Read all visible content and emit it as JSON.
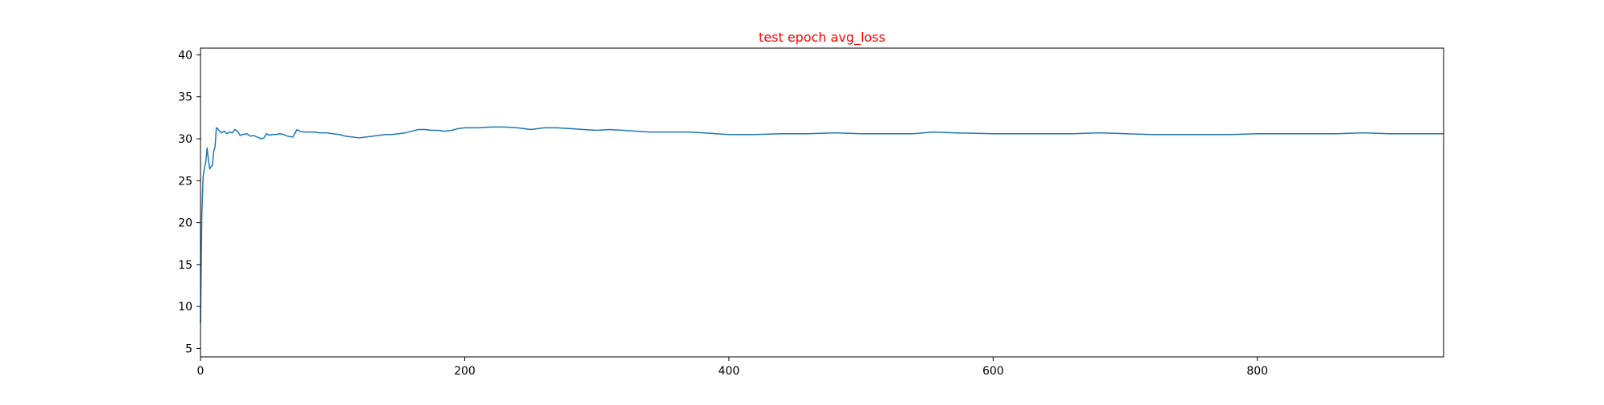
{
  "chart_data": {
    "type": "line",
    "title": "test epoch avg_loss",
    "title_color": "#ff0000",
    "xlabel": "",
    "ylabel": "",
    "xlim": [
      0,
      941
    ],
    "ylim": [
      4,
      40.8
    ],
    "xticks": [
      0,
      200,
      400,
      600,
      800
    ],
    "xtick_labels": [
      "0",
      "200",
      "400",
      "600",
      "800"
    ],
    "yticks": [
      5,
      10,
      15,
      20,
      25,
      30,
      35,
      40
    ],
    "ytick_labels": [
      "5",
      "10",
      "15",
      "20",
      "25",
      "30",
      "35",
      "40"
    ],
    "grid": false,
    "legend": "none",
    "series": [
      {
        "color": "#1f77b4",
        "x": [
          0,
          1,
          2,
          3,
          4,
          5,
          6,
          7,
          8,
          9,
          10,
          11,
          12,
          13,
          14,
          16,
          18,
          20,
          22,
          24,
          26,
          28,
          30,
          32,
          35,
          38,
          40,
          43,
          46,
          48,
          50,
          52,
          54,
          57,
          60,
          63,
          66,
          70,
          73,
          75,
          78,
          82,
          86,
          90,
          95,
          100,
          105,
          110,
          115,
          120,
          125,
          130,
          135,
          140,
          145,
          150,
          155,
          160,
          165,
          170,
          175,
          180,
          185,
          190,
          195,
          200,
          210,
          220,
          230,
          240,
          250,
          260,
          270,
          280,
          290,
          300,
          310,
          320,
          330,
          340,
          350,
          360,
          370,
          380,
          390,
          400,
          420,
          440,
          460,
          480,
          500,
          520,
          540,
          555,
          570,
          600,
          620,
          640,
          660,
          680,
          700,
          720,
          740,
          760,
          780,
          800,
          820,
          840,
          860,
          880,
          900,
          920,
          941
        ],
        "y": [
          8,
          21,
          25.5,
          26.5,
          27.2,
          28.9,
          27.5,
          26.4,
          26.7,
          26.8,
          28.5,
          29.0,
          31.3,
          31.2,
          31.0,
          30.7,
          30.9,
          30.6,
          30.8,
          30.7,
          31.1,
          30.9,
          30.4,
          30.5,
          30.6,
          30.3,
          30.4,
          30.2,
          30.0,
          30.1,
          30.6,
          30.4,
          30.5,
          30.5,
          30.6,
          30.5,
          30.3,
          30.2,
          31.1,
          30.9,
          30.8,
          30.8,
          30.8,
          30.7,
          30.7,
          30.6,
          30.5,
          30.3,
          30.2,
          30.1,
          30.2,
          30.3,
          30.4,
          30.5,
          30.5,
          30.6,
          30.7,
          30.9,
          31.1,
          31.1,
          31.0,
          31.0,
          30.9,
          31.0,
          31.2,
          31.3,
          31.3,
          31.4,
          31.4,
          31.3,
          31.1,
          31.3,
          31.3,
          31.2,
          31.1,
          31.0,
          31.1,
          31.0,
          30.9,
          30.8,
          30.8,
          30.8,
          30.8,
          30.7,
          30.6,
          30.5,
          30.5,
          30.6,
          30.6,
          30.7,
          30.6,
          30.6,
          30.6,
          30.8,
          30.7,
          30.6,
          30.6,
          30.6,
          30.6,
          30.7,
          30.6,
          30.5,
          30.5,
          30.5,
          30.5,
          30.6,
          30.6,
          30.6,
          30.6,
          30.7,
          30.6,
          30.6,
          30.6
        ]
      }
    ]
  }
}
